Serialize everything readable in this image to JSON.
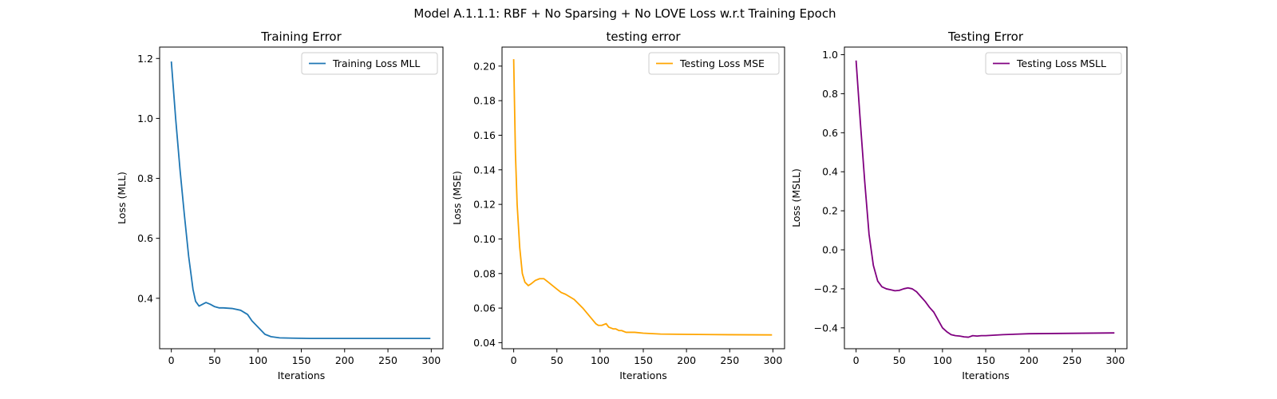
{
  "figure": {
    "suptitle": "Model A.1.1.1: RBF + No Sparsing + No LOVE Loss w.r.t Training Epoch"
  },
  "chart_data": [
    {
      "type": "line",
      "title": "Training Error",
      "xlabel": "Iterations",
      "ylabel": "Loss (MLL)",
      "xlim": [
        -13.5,
        313.5
      ],
      "ylim": [
        0.2317,
        1.238
      ],
      "xticks": [
        0,
        50,
        100,
        150,
        200,
        250,
        300
      ],
      "xtick_labels": [
        "0",
        "50",
        "100",
        "150",
        "200",
        "250",
        "300"
      ],
      "yticks": [
        0.4,
        0.6,
        0.8,
        1.0,
        1.2
      ],
      "ytick_labels": [
        "0.4",
        "0.6",
        "0.8",
        "1.0",
        "1.2"
      ],
      "legend": "top-right",
      "grid": false,
      "series": [
        {
          "name": "Training Loss MLL",
          "color": "#1f77b4",
          "x": [
            0,
            5,
            10,
            15,
            20,
            25,
            28,
            32,
            36,
            40,
            45,
            50,
            55,
            60,
            70,
            80,
            88,
            93,
            98,
            103,
            108,
            115,
            125,
            140,
            160,
            200,
            250,
            299
          ],
          "y": [
            1.19,
            1.0,
            0.83,
            0.68,
            0.54,
            0.43,
            0.39,
            0.374,
            0.38,
            0.386,
            0.38,
            0.372,
            0.368,
            0.368,
            0.366,
            0.36,
            0.346,
            0.325,
            0.31,
            0.295,
            0.28,
            0.272,
            0.268,
            0.267,
            0.266,
            0.266,
            0.266,
            0.266
          ]
        }
      ]
    },
    {
      "type": "line",
      "title": "testing error",
      "xlabel": "Iterations",
      "ylabel": "Loss (MSE)",
      "xlim": [
        -13.5,
        313.5
      ],
      "ylim": [
        0.0365,
        0.211
      ],
      "xticks": [
        0,
        50,
        100,
        150,
        200,
        250,
        300
      ],
      "xtick_labels": [
        "0",
        "50",
        "100",
        "150",
        "200",
        "250",
        "300"
      ],
      "yticks": [
        0.04,
        0.06,
        0.08,
        0.1,
        0.12,
        0.14,
        0.16,
        0.18,
        0.2
      ],
      "ytick_labels": [
        "0.04",
        "0.06",
        "0.08",
        "0.10",
        "0.12",
        "0.14",
        "0.16",
        "0.18",
        "0.20"
      ],
      "legend": "top-right",
      "grid": false,
      "series": [
        {
          "name": "Testing Loss MSE",
          "color": "#ffa500",
          "x": [
            0,
            2,
            4,
            7,
            10,
            13,
            17,
            20,
            25,
            30,
            35,
            40,
            45,
            50,
            55,
            60,
            70,
            80,
            90,
            95,
            98,
            102,
            107,
            110,
            115,
            118,
            122,
            125,
            130,
            135,
            140,
            150,
            170,
            200,
            250,
            299
          ],
          "y": [
            0.204,
            0.15,
            0.12,
            0.095,
            0.08,
            0.075,
            0.073,
            0.074,
            0.076,
            0.077,
            0.077,
            0.075,
            0.073,
            0.071,
            0.069,
            0.068,
            0.065,
            0.06,
            0.054,
            0.051,
            0.05,
            0.05,
            0.051,
            0.049,
            0.048,
            0.048,
            0.047,
            0.047,
            0.046,
            0.046,
            0.046,
            0.0455,
            0.045,
            0.0448,
            0.0446,
            0.0445
          ]
        }
      ]
    },
    {
      "type": "line",
      "title": "Testing Error",
      "xlabel": "Iterations",
      "ylabel": "Loss (MSLL)",
      "xlim": [
        -13.5,
        313.5
      ],
      "ylim": [
        -0.507,
        1.039
      ],
      "xticks": [
        0,
        50,
        100,
        150,
        200,
        250,
        300
      ],
      "xtick_labels": [
        "0",
        "50",
        "100",
        "150",
        "200",
        "250",
        "300"
      ],
      "yticks": [
        -0.4,
        -0.2,
        0.0,
        0.2,
        0.4,
        0.6,
        0.8,
        1.0
      ],
      "ytick_labels": [
        "−0.4",
        "−0.2",
        "0.0",
        "0.2",
        "0.4",
        "0.6",
        "0.8",
        "1.0"
      ],
      "legend": "top-right",
      "grid": false,
      "series": [
        {
          "name": "Testing Loss MSLL",
          "color": "#800080",
          "x": [
            0,
            5,
            10,
            15,
            20,
            25,
            30,
            35,
            40,
            45,
            50,
            55,
            60,
            65,
            70,
            75,
            80,
            85,
            90,
            95,
            100,
            105,
            110,
            115,
            120,
            125,
            130,
            135,
            140,
            145,
            150,
            170,
            200,
            250,
            299
          ],
          "y": [
            0.97,
            0.65,
            0.35,
            0.08,
            -0.08,
            -0.16,
            -0.19,
            -0.2,
            -0.205,
            -0.21,
            -0.208,
            -0.2,
            -0.195,
            -0.2,
            -0.215,
            -0.24,
            -0.265,
            -0.295,
            -0.32,
            -0.36,
            -0.4,
            -0.42,
            -0.435,
            -0.44,
            -0.442,
            -0.446,
            -0.448,
            -0.44,
            -0.442,
            -0.44,
            -0.44,
            -0.435,
            -0.43,
            -0.428,
            -0.426
          ]
        }
      ]
    }
  ]
}
